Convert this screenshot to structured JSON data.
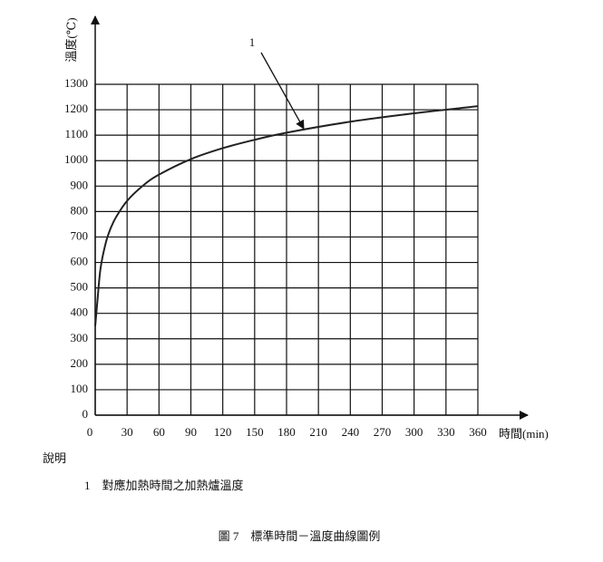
{
  "chart_data": {
    "type": "line",
    "y_label": "溫度(℃)",
    "x_label": "時間(min)",
    "annotation": "1",
    "x": [
      0,
      2,
      5,
      10,
      15,
      20,
      30,
      45,
      60,
      90,
      120,
      150,
      180,
      240,
      300,
      360
    ],
    "values": [
      350,
      445,
      576,
      678,
      739,
      781,
      842,
      902,
      945,
      1006,
      1049,
      1082,
      1110,
      1153,
      1186,
      1214
    ],
    "color": "#222222",
    "xlim": [
      0,
      360
    ],
    "xticks": [
      0,
      30,
      60,
      90,
      120,
      150,
      180,
      210,
      240,
      270,
      300,
      330,
      360
    ],
    "ylim": [
      0,
      1300
    ],
    "yticks": [
      0,
      100,
      200,
      300,
      400,
      500,
      600,
      700,
      800,
      900,
      1000,
      1100,
      1200,
      1300
    ],
    "grid": true
  },
  "notes": {
    "heading": "說明",
    "items": [
      "1　對應加熱時間之加熱爐溫度"
    ]
  },
  "caption": "圖 7　標準時間－溫度曲線圖例"
}
